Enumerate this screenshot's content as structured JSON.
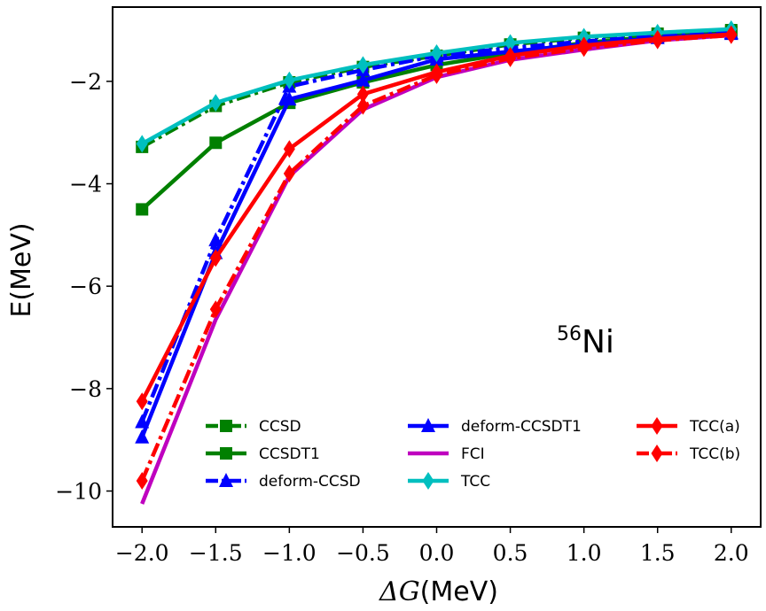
{
  "chart_data": {
    "type": "line",
    "xlabel_symbol": "ΔG",
    "xlabel_unit": "(MeV)",
    "ylabel": "E(MeV)",
    "annotation": {
      "prefix": "56",
      "text": "Ni"
    },
    "xlim": [
      -2.2,
      2.2
    ],
    "ylim": [
      -10.7,
      -0.55
    ],
    "xticks": [
      -2.0,
      -1.5,
      -1.0,
      -0.5,
      0.0,
      0.5,
      1.0,
      1.5,
      2.0
    ],
    "xtick_labels": [
      "−2.0",
      "−1.5",
      "−1.0",
      "−0.5",
      "0.0",
      "0.5",
      "1.0",
      "1.5",
      "2.0"
    ],
    "yticks": [
      -2,
      -4,
      -6,
      -8,
      -10
    ],
    "ytick_labels": [
      "−2",
      "−4",
      "−6",
      "−8",
      "−10"
    ],
    "legend_location": "bottom",
    "x": [
      -2.0,
      -1.5,
      -1.0,
      -0.5,
      0.0,
      0.5,
      1.0,
      1.5,
      2.0
    ],
    "series": [
      {
        "name": "CCSD",
        "color": "#008000",
        "marker": "square",
        "dash": "dashdot",
        "values": [
          -3.28,
          -2.48,
          -2.02,
          -1.72,
          -1.5,
          -1.28,
          -1.15,
          -1.07,
          -1.0
        ]
      },
      {
        "name": "CCSDT1",
        "color": "#008000",
        "marker": "square",
        "dash": "solid",
        "values": [
          -4.5,
          -3.2,
          -2.42,
          -2.02,
          -1.68,
          -1.45,
          -1.25,
          -1.12,
          -1.03
        ]
      },
      {
        "name": "deform-CCSD",
        "color": "#0000ff",
        "marker": "triangle",
        "dash": "dashdot",
        "values": [
          -8.65,
          -5.1,
          -2.1,
          -1.78,
          -1.5,
          -1.35,
          -1.22,
          -1.12,
          -1.05
        ]
      },
      {
        "name": "deform-CCSDT1",
        "color": "#0000ff",
        "marker": "triangle",
        "dash": "solid",
        "values": [
          -8.95,
          -5.35,
          -2.35,
          -1.98,
          -1.57,
          -1.42,
          -1.28,
          -1.15,
          -1.07
        ]
      },
      {
        "name": "FCI",
        "color": "#bf00bf",
        "marker": "none",
        "dash": "solid",
        "values": [
          -10.25,
          -6.65,
          -3.85,
          -2.55,
          -1.92,
          -1.58,
          -1.38,
          -1.2,
          -1.1
        ]
      },
      {
        "name": "TCC",
        "color": "#00bfbf",
        "marker": "diamond",
        "dash": "solid",
        "values": [
          -3.22,
          -2.42,
          -1.98,
          -1.68,
          -1.45,
          -1.25,
          -1.13,
          -1.05,
          -0.98
        ]
      },
      {
        "name": "TCC(a)",
        "color": "#ff0000",
        "marker": "diamond",
        "dash": "solid",
        "values": [
          -8.25,
          -5.45,
          -3.32,
          -2.25,
          -1.82,
          -1.5,
          -1.3,
          -1.17,
          -1.08
        ]
      },
      {
        "name": "TCC(b)",
        "color": "#ff0000",
        "marker": "diamond",
        "dash": "dashdot",
        "values": [
          -9.8,
          -6.45,
          -3.8,
          -2.48,
          -1.88,
          -1.55,
          -1.35,
          -1.2,
          -1.1
        ]
      }
    ]
  }
}
